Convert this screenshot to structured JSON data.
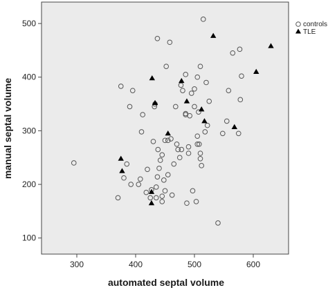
{
  "chart_data": {
    "type": "scatter",
    "xlabel": "automated septal volume",
    "ylabel": "manual septal volume",
    "xlim": [
      240,
      660
    ],
    "ylim": [
      70,
      540
    ],
    "x_ticks": [
      300,
      400,
      500,
      600
    ],
    "y_ticks": [
      100,
      200,
      300,
      400,
      500
    ],
    "grid": false,
    "legend_position": "top-right",
    "colors": {
      "plot_background": "#ebebeb",
      "frame": "#444444",
      "controls_marker": "#555555",
      "tle_marker": "#000000"
    },
    "series": [
      {
        "name": "controls",
        "marker": "open-circle",
        "points": [
          [
            295,
            240
          ],
          [
            370,
            175
          ],
          [
            375,
            383
          ],
          [
            380,
            212
          ],
          [
            385,
            238
          ],
          [
            390,
            345
          ],
          [
            392,
            200
          ],
          [
            395,
            375
          ],
          [
            405,
            200
          ],
          [
            408,
            210
          ],
          [
            410,
            298
          ],
          [
            412,
            330
          ],
          [
            418,
            185
          ],
          [
            420,
            228
          ],
          [
            425,
            175
          ],
          [
            427,
            190
          ],
          [
            430,
            280
          ],
          [
            432,
            345
          ],
          [
            433,
            350
          ],
          [
            435,
            175
          ],
          [
            435,
            195
          ],
          [
            437,
            472
          ],
          [
            437,
            214
          ],
          [
            438,
            265
          ],
          [
            440,
            230
          ],
          [
            442,
            245
          ],
          [
            445,
            255
          ],
          [
            445,
            168
          ],
          [
            445,
            178
          ],
          [
            448,
            208
          ],
          [
            450,
            188
          ],
          [
            450,
            282
          ],
          [
            452,
            420
          ],
          [
            455,
            218
          ],
          [
            455,
            282
          ],
          [
            458,
            465
          ],
          [
            460,
            285
          ],
          [
            462,
            180
          ],
          [
            465,
            238
          ],
          [
            468,
            345
          ],
          [
            470,
            275
          ],
          [
            472,
            265
          ],
          [
            475,
            250
          ],
          [
            477,
            385
          ],
          [
            478,
            265
          ],
          [
            480,
            375
          ],
          [
            485,
            405
          ],
          [
            485,
            330
          ],
          [
            485,
            332
          ],
          [
            487,
            165
          ],
          [
            490,
            270
          ],
          [
            490,
            258
          ],
          [
            492,
            328
          ],
          [
            495,
            370
          ],
          [
            497,
            188
          ],
          [
            500,
            378
          ],
          [
            500,
            345
          ],
          [
            503,
            168
          ],
          [
            505,
            290
          ],
          [
            505,
            275
          ],
          [
            505,
            400
          ],
          [
            507,
            335
          ],
          [
            508,
            275
          ],
          [
            510,
            420
          ],
          [
            510,
            248
          ],
          [
            510,
            258
          ],
          [
            512,
            235
          ],
          [
            515,
            508
          ],
          [
            518,
            298
          ],
          [
            520,
            390
          ],
          [
            522,
            310
          ],
          [
            525,
            355
          ],
          [
            540,
            128
          ],
          [
            548,
            295
          ],
          [
            555,
            318
          ],
          [
            558,
            375
          ],
          [
            565,
            445
          ],
          [
            575,
            295
          ],
          [
            577,
            452
          ],
          [
            578,
            358
          ],
          [
            580,
            402
          ]
        ]
      },
      {
        "name": "TLE",
        "marker": "filled-triangle",
        "points": [
          [
            375,
            248
          ],
          [
            377,
            225
          ],
          [
            427,
            165
          ],
          [
            427,
            186
          ],
          [
            428,
            398
          ],
          [
            433,
            352
          ],
          [
            455,
            295
          ],
          [
            478,
            393
          ],
          [
            487,
            355
          ],
          [
            512,
            340
          ],
          [
            517,
            318
          ],
          [
            532,
            477
          ],
          [
            568,
            307
          ],
          [
            605,
            410
          ],
          [
            630,
            458
          ]
        ]
      }
    ]
  },
  "legend": {
    "controls_label": "controls",
    "tle_label": "TLE"
  }
}
